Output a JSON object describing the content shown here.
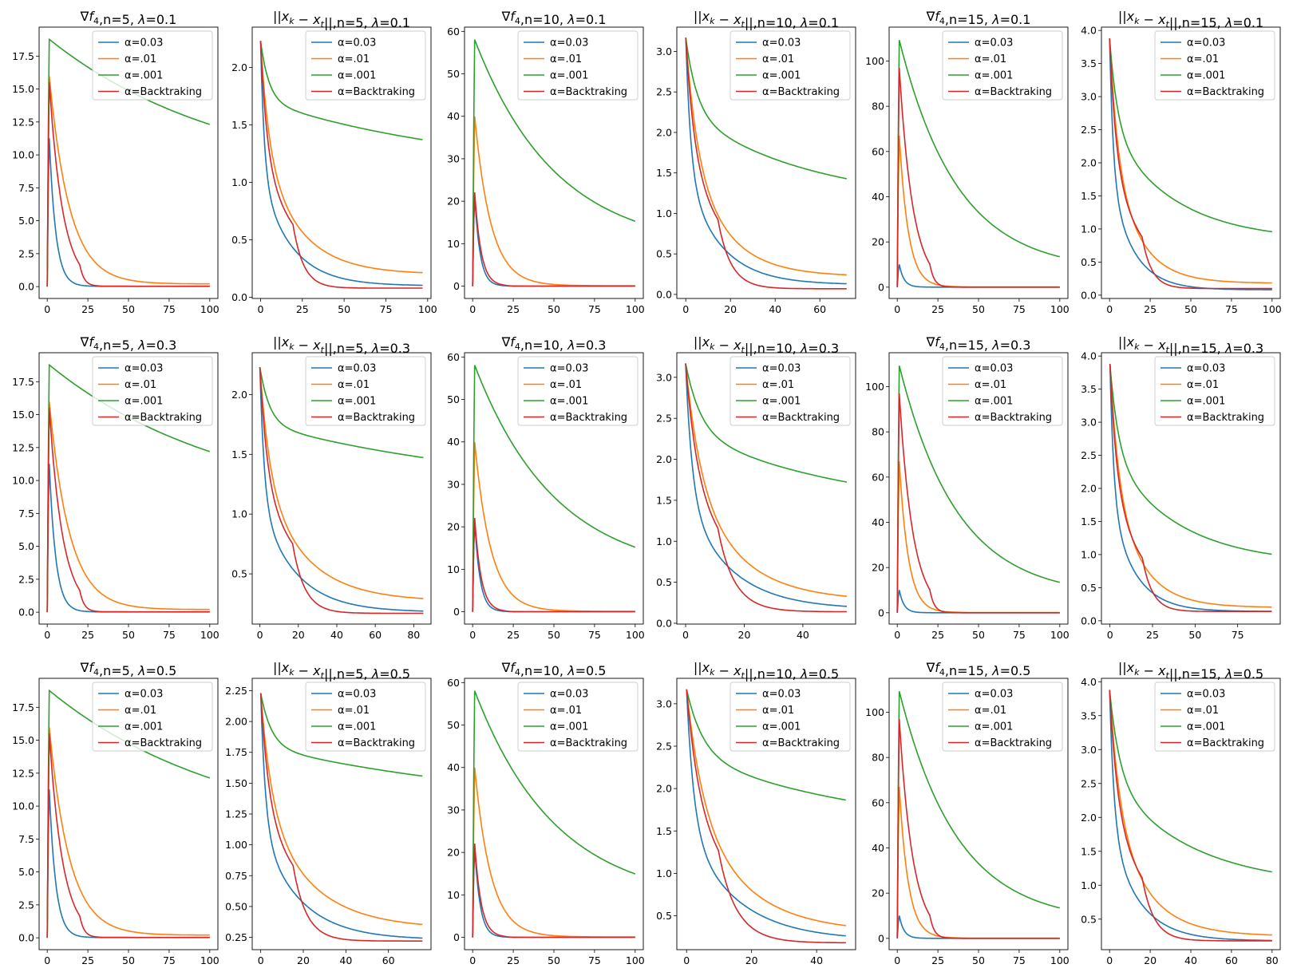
{
  "legend_labels": [
    "α=0.03",
    "α=.01",
    "α=.001",
    "α=Backtraking"
  ],
  "colors": [
    "#1f77b4",
    "#ff7f0e",
    "#2ca02c",
    "#d62728"
  ],
  "chart_data": [
    {
      "type": "line",
      "title": "∇f4,n=5, λ=0.1",
      "kind": "grad",
      "x_max": 100,
      "xlim": [
        -5,
        105
      ],
      "ylim": [
        -0.9,
        19.7
      ],
      "xticks": [
        0,
        25,
        50,
        75,
        100
      ],
      "yticks": [
        0.0,
        2.5,
        5.0,
        7.5,
        10.0,
        12.5,
        15.0,
        17.5
      ],
      "legend": "upper right",
      "series": [
        {
          "name": "α=0.03",
          "start": 12.0,
          "peak": 1,
          "end": 0.02,
          "rate": 0.25
        },
        {
          "name": "α=.01",
          "start": 16.3,
          "peak": 1,
          "end": 0.2,
          "rate": 0.08
        },
        {
          "name": "α=.001",
          "start": 18.8,
          "peak": 1,
          "end": 7.8,
          "rate": 0.009
        },
        {
          "name": "α=Backtraking",
          "start": 16.0,
          "peak": 1,
          "end": 0.03,
          "rate": 0.12
        }
      ]
    },
    {
      "type": "line",
      "title": "||xk − xt||,n=5, λ=0.1",
      "kind": "dist",
      "x_max": 97,
      "xlim": [
        -5,
        102
      ],
      "ylim": [
        -0.01,
        2.35
      ],
      "xticks": [
        0,
        25,
        50,
        75,
        100
      ],
      "yticks": [
        0.0,
        0.5,
        1.0,
        1.5,
        2.0
      ],
      "legend": "upper right",
      "series": [
        {
          "name": "α=0.03",
          "start": 2.23,
          "end": 0.1,
          "rate": 0.1
        },
        {
          "name": "α=.01",
          "start": 2.23,
          "end": 0.2,
          "rate": 0.045
        },
        {
          "name": "α=.001",
          "start": 2.23,
          "end": 1.08,
          "rate": 0.008
        },
        {
          "name": "α=Backtraking",
          "start": 2.23,
          "end": 0.08,
          "rate": 0.07
        }
      ]
    },
    {
      "type": "line",
      "title": "∇f4,n=10, λ=0.1",
      "kind": "grad",
      "x_max": 100,
      "xlim": [
        -5,
        105
      ],
      "ylim": [
        -2.9,
        61
      ],
      "xticks": [
        0,
        25,
        50,
        75,
        100
      ],
      "yticks": [
        0,
        10,
        20,
        30,
        40,
        50,
        60
      ],
      "legend": "upper right",
      "series": [
        {
          "name": "α=0.03",
          "start": 23.0,
          "peak": 1,
          "end": 0.02,
          "rate": 0.3
        },
        {
          "name": "α=.01",
          "start": 41.0,
          "peak": 1,
          "end": 0.1,
          "rate": 0.1
        },
        {
          "name": "α=.001",
          "start": 58.3,
          "peak": 1,
          "end": 8.4,
          "rate": 0.02
        },
        {
          "name": "α=Backtraking",
          "start": 23.5,
          "peak": 1,
          "end": 0.02,
          "rate": 0.25
        }
      ]
    },
    {
      "type": "line",
      "title": "||xk − xt||,n=10, λ=0.1",
      "kind": "dist",
      "x_max": 72,
      "xlim": [
        -4,
        76
      ],
      "ylim": [
        -0.05,
        3.3
      ],
      "xticks": [
        0,
        20,
        40,
        60
      ],
      "yticks": [
        0.0,
        0.5,
        1.0,
        1.5,
        2.0,
        2.5,
        3.0
      ],
      "legend": "upper right",
      "series": [
        {
          "name": "α=0.03",
          "start": 3.17,
          "end": 0.12,
          "rate": 0.12
        },
        {
          "name": "α=.01",
          "start": 3.17,
          "end": 0.22,
          "rate": 0.06
        },
        {
          "name": "α=.001",
          "start": 3.17,
          "end": 1.12,
          "rate": 0.018
        },
        {
          "name": "α=Backtraking",
          "start": 3.17,
          "end": 0.07,
          "rate": 0.09
        }
      ]
    },
    {
      "type": "line",
      "title": "∇f4,n=15, λ=0.1",
      "kind": "grad",
      "x_max": 100,
      "xlim": [
        -5,
        105
      ],
      "ylim": [
        -5,
        115
      ],
      "xticks": [
        0,
        25,
        50,
        75,
        100
      ],
      "yticks": [
        0,
        20,
        40,
        60,
        80,
        100
      ],
      "legend": "upper right",
      "series": [
        {
          "name": "α=0.03",
          "start": 11.0,
          "peak": 1,
          "end": 0.02,
          "rate": 0.35
        },
        {
          "name": "α=.01",
          "start": 70.0,
          "peak": 1,
          "end": 0.1,
          "rate": 0.18
        },
        {
          "name": "α=.001",
          "start": 110.0,
          "peak": 1,
          "end": 7.0,
          "rate": 0.028
        },
        {
          "name": "α=Backtraking",
          "start": 100.0,
          "peak": 1,
          "end": 0.02,
          "rate": 0.12
        }
      ]
    },
    {
      "type": "line",
      "title": "||xk − xt||,n=15, λ=0.1",
      "kind": "dist",
      "x_max": 100,
      "xlim": [
        -5,
        105
      ],
      "ylim": [
        -0.05,
        4.05
      ],
      "xticks": [
        0,
        25,
        50,
        75,
        100
      ],
      "yticks": [
        0.0,
        0.5,
        1.0,
        1.5,
        2.0,
        2.5,
        3.0,
        3.5,
        4.0
      ],
      "legend": "upper right",
      "series": [
        {
          "name": "α=0.03",
          "start": 3.88,
          "end": 0.08,
          "rate": 0.13
        },
        {
          "name": "α=.01",
          "start": 3.88,
          "end": 0.18,
          "rate": 0.06
        },
        {
          "name": "α=.001",
          "start": 3.88,
          "end": 0.82,
          "rate": 0.025
        },
        {
          "name": "α=Backtraking",
          "start": 3.88,
          "end": 0.1,
          "rate": 0.09
        }
      ]
    },
    {
      "type": "line",
      "title": "∇f4,n=5, λ=0.3",
      "kind": "grad",
      "x_max": 100,
      "xlim": [
        -5,
        105
      ],
      "ylim": [
        -0.9,
        19.7
      ],
      "xticks": [
        0,
        25,
        50,
        75,
        100
      ],
      "yticks": [
        0.0,
        2.5,
        5.0,
        7.5,
        10.0,
        12.5,
        15.0,
        17.5
      ],
      "legend": "upper right",
      "series": [
        {
          "name": "α=0.03",
          "start": 12.0,
          "peak": 1,
          "end": 0.02,
          "rate": 0.25
        },
        {
          "name": "α=.01",
          "start": 16.3,
          "peak": 1,
          "end": 0.2,
          "rate": 0.08
        },
        {
          "name": "α=.001",
          "start": 18.8,
          "peak": 1,
          "end": 7.6,
          "rate": 0.009
        },
        {
          "name": "α=Backtraking",
          "start": 16.0,
          "peak": 1,
          "end": 0.03,
          "rate": 0.12
        }
      ]
    },
    {
      "type": "line",
      "title": "||xk − xt||,n=5, λ=0.3",
      "kind": "dist",
      "x_max": 85,
      "xlim": [
        -4,
        89
      ],
      "ylim": [
        0.08,
        2.35
      ],
      "xticks": [
        0,
        20,
        40,
        60,
        80
      ],
      "yticks": [
        0.5,
        1.0,
        1.5,
        2.0
      ],
      "legend": "upper right",
      "series": [
        {
          "name": "α=0.03",
          "start": 2.23,
          "end": 0.18,
          "rate": 0.1
        },
        {
          "name": "α=.01",
          "start": 2.23,
          "end": 0.27,
          "rate": 0.045
        },
        {
          "name": "α=.001",
          "start": 2.23,
          "end": 1.18,
          "rate": 0.008
        },
        {
          "name": "α=Backtraking",
          "start": 2.23,
          "end": 0.17,
          "rate": 0.07
        }
      ]
    },
    {
      "type": "line",
      "title": "∇f4,n=10, λ=0.3",
      "kind": "grad",
      "x_max": 100,
      "xlim": [
        -5,
        105
      ],
      "ylim": [
        -2.9,
        61
      ],
      "xticks": [
        0,
        25,
        50,
        75,
        100
      ],
      "yticks": [
        0,
        10,
        20,
        30,
        40,
        50,
        60
      ],
      "legend": "upper right",
      "series": [
        {
          "name": "α=0.03",
          "start": 23.0,
          "peak": 1,
          "end": 0.02,
          "rate": 0.3
        },
        {
          "name": "α=.01",
          "start": 41.0,
          "peak": 1,
          "end": 0.1,
          "rate": 0.1
        },
        {
          "name": "α=.001",
          "start": 58.3,
          "peak": 1,
          "end": 8.3,
          "rate": 0.02
        },
        {
          "name": "α=Backtraking",
          "start": 23.5,
          "peak": 1,
          "end": 0.02,
          "rate": 0.25
        }
      ]
    },
    {
      "type": "line",
      "title": "||xk − xt||,n=10, λ=0.3",
      "kind": "dist",
      "x_max": 55,
      "xlim": [
        -3,
        58
      ],
      "ylim": [
        -0.01,
        3.3
      ],
      "xticks": [
        0,
        20,
        40
      ],
      "yticks": [
        0.0,
        0.5,
        1.0,
        1.5,
        2.0,
        2.5,
        3.0
      ],
      "legend": "upper right",
      "series": [
        {
          "name": "α=0.03",
          "start": 3.17,
          "end": 0.17,
          "rate": 0.12
        },
        {
          "name": "α=.01",
          "start": 3.17,
          "end": 0.27,
          "rate": 0.06
        },
        {
          "name": "α=.001",
          "start": 3.17,
          "end": 1.35,
          "rate": 0.018
        },
        {
          "name": "α=Backtraking",
          "start": 3.17,
          "end": 0.14,
          "rate": 0.09
        }
      ]
    },
    {
      "type": "line",
      "title": "∇f4,n=15, λ=0.3",
      "kind": "grad",
      "x_max": 100,
      "xlim": [
        -5,
        105
      ],
      "ylim": [
        -5,
        115
      ],
      "xticks": [
        0,
        25,
        50,
        75,
        100
      ],
      "yticks": [
        0,
        20,
        40,
        60,
        80,
        100
      ],
      "legend": "upper right",
      "series": [
        {
          "name": "α=0.03",
          "start": 11.0,
          "peak": 1,
          "end": 0.02,
          "rate": 0.35
        },
        {
          "name": "α=.01",
          "start": 70.0,
          "peak": 1,
          "end": 0.1,
          "rate": 0.18
        },
        {
          "name": "α=.001",
          "start": 110.0,
          "peak": 1,
          "end": 7.0,
          "rate": 0.028
        },
        {
          "name": "α=Backtraking",
          "start": 100.0,
          "peak": 1,
          "end": 0.02,
          "rate": 0.12
        }
      ]
    },
    {
      "type": "line",
      "title": "||xk − xt||,n=15, λ=0.3",
      "kind": "dist",
      "x_max": 95,
      "xlim": [
        -5,
        100
      ],
      "ylim": [
        -0.05,
        4.05
      ],
      "xticks": [
        0,
        25,
        50,
        75
      ],
      "yticks": [
        0.0,
        0.5,
        1.0,
        1.5,
        2.0,
        2.5,
        3.0,
        3.5,
        4.0
      ],
      "legend": "upper right",
      "series": [
        {
          "name": "α=0.03",
          "start": 3.88,
          "end": 0.14,
          "rate": 0.13
        },
        {
          "name": "α=.01",
          "start": 3.88,
          "end": 0.2,
          "rate": 0.06
        },
        {
          "name": "α=.001",
          "start": 3.88,
          "end": 0.85,
          "rate": 0.025
        },
        {
          "name": "α=Backtraking",
          "start": 3.88,
          "end": 0.14,
          "rate": 0.09
        }
      ]
    },
    {
      "type": "line",
      "title": "∇f4,n=5, λ=0.5",
      "kind": "grad",
      "x_max": 100,
      "xlim": [
        -5,
        105
      ],
      "ylim": [
        -0.9,
        19.7
      ],
      "xticks": [
        0,
        25,
        50,
        75,
        100
      ],
      "yticks": [
        0.0,
        2.5,
        5.0,
        7.5,
        10.0,
        12.5,
        15.0,
        17.5
      ],
      "legend": "upper right",
      "series": [
        {
          "name": "α=0.03",
          "start": 12.0,
          "peak": 1,
          "end": 0.02,
          "rate": 0.25
        },
        {
          "name": "α=.01",
          "start": 16.3,
          "peak": 1,
          "end": 0.2,
          "rate": 0.08
        },
        {
          "name": "α=.001",
          "start": 18.8,
          "peak": 1,
          "end": 7.5,
          "rate": 0.009
        },
        {
          "name": "α=Backtraking",
          "start": 16.0,
          "peak": 1,
          "end": 0.03,
          "rate": 0.12
        }
      ]
    },
    {
      "type": "line",
      "title": "||xk − xt||,n=5, λ=0.5",
      "kind": "dist",
      "x_max": 76,
      "xlim": [
        -4,
        80
      ],
      "ylim": [
        0.15,
        2.35
      ],
      "xticks": [
        0,
        20,
        40,
        60
      ],
      "yticks": [
        0.25,
        0.5,
        0.75,
        1.0,
        1.25,
        1.5,
        1.75,
        2.0,
        2.25
      ],
      "legend": "upper right",
      "series": [
        {
          "name": "α=0.03",
          "start": 2.23,
          "end": 0.23,
          "rate": 0.1
        },
        {
          "name": "α=.01",
          "start": 2.23,
          "end": 0.32,
          "rate": 0.045
        },
        {
          "name": "α=.001",
          "start": 2.23,
          "end": 1.27,
          "rate": 0.008
        },
        {
          "name": "α=Backtraking",
          "start": 2.23,
          "end": 0.22,
          "rate": 0.07
        }
      ]
    },
    {
      "type": "line",
      "title": "∇f4,n=10, λ=0.5",
      "kind": "grad",
      "x_max": 100,
      "xlim": [
        -5,
        105
      ],
      "ylim": [
        -2.9,
        61
      ],
      "xticks": [
        0,
        25,
        50,
        75,
        100
      ],
      "yticks": [
        0,
        10,
        20,
        30,
        40,
        50,
        60
      ],
      "legend": "upper right",
      "series": [
        {
          "name": "α=0.03",
          "start": 23.0,
          "peak": 1,
          "end": 0.02,
          "rate": 0.3
        },
        {
          "name": "α=.01",
          "start": 41.0,
          "peak": 1,
          "end": 0.1,
          "rate": 0.1
        },
        {
          "name": "α=.001",
          "start": 58.3,
          "peak": 1,
          "end": 8.0,
          "rate": 0.02
        },
        {
          "name": "α=Backtraking",
          "start": 23.5,
          "peak": 1,
          "end": 0.02,
          "rate": 0.25
        }
      ]
    },
    {
      "type": "line",
      "title": "||xk − xt||,n=10, λ=0.5",
      "kind": "dist",
      "x_max": 49,
      "xlim": [
        -3,
        52
      ],
      "ylim": [
        0.1,
        3.3
      ],
      "xticks": [
        0,
        20,
        40
      ],
      "yticks": [
        0.5,
        1.0,
        1.5,
        2.0,
        2.5,
        3.0
      ],
      "legend": "upper right",
      "series": [
        {
          "name": "α=0.03",
          "start": 3.17,
          "end": 0.21,
          "rate": 0.12
        },
        {
          "name": "α=.01",
          "start": 3.17,
          "end": 0.3,
          "rate": 0.06
        },
        {
          "name": "α=.001",
          "start": 3.17,
          "end": 1.48,
          "rate": 0.018
        },
        {
          "name": "α=Backtraking",
          "start": 3.17,
          "end": 0.18,
          "rate": 0.09
        }
      ]
    },
    {
      "type": "line",
      "title": "∇f4,n=15, λ=0.5",
      "kind": "grad",
      "x_max": 100,
      "xlim": [
        -5,
        105
      ],
      "ylim": [
        -5,
        115
      ],
      "xticks": [
        0,
        25,
        50,
        75,
        100
      ],
      "yticks": [
        0,
        20,
        40,
        60,
        80,
        100
      ],
      "legend": "upper right",
      "series": [
        {
          "name": "α=0.03",
          "start": 11.0,
          "peak": 1,
          "end": 0.02,
          "rate": 0.35
        },
        {
          "name": "α=.01",
          "start": 70.0,
          "peak": 1,
          "end": 0.1,
          "rate": 0.18
        },
        {
          "name": "α=.001",
          "start": 110.0,
          "peak": 1,
          "end": 7.0,
          "rate": 0.028
        },
        {
          "name": "α=Backtraking",
          "start": 100.0,
          "peak": 1,
          "end": 0.02,
          "rate": 0.12
        }
      ]
    },
    {
      "type": "line",
      "title": "||xk − xt||,n=15, λ=0.5",
      "kind": "dist",
      "x_max": 80,
      "xlim": [
        -4,
        84
      ],
      "ylim": [
        0.05,
        4.05
      ],
      "xticks": [
        0,
        20,
        40,
        60,
        80
      ],
      "yticks": [
        0.5,
        1.0,
        1.5,
        2.0,
        2.5,
        3.0,
        3.5,
        4.0
      ],
      "legend": "upper right",
      "series": [
        {
          "name": "α=0.03",
          "start": 3.88,
          "end": 0.18,
          "rate": 0.13
        },
        {
          "name": "α=.01",
          "start": 3.88,
          "end": 0.25,
          "rate": 0.06
        },
        {
          "name": "α=.001",
          "start": 3.88,
          "end": 0.98,
          "rate": 0.025
        },
        {
          "name": "α=Backtraking",
          "start": 3.88,
          "end": 0.18,
          "rate": 0.09
        }
      ]
    }
  ]
}
